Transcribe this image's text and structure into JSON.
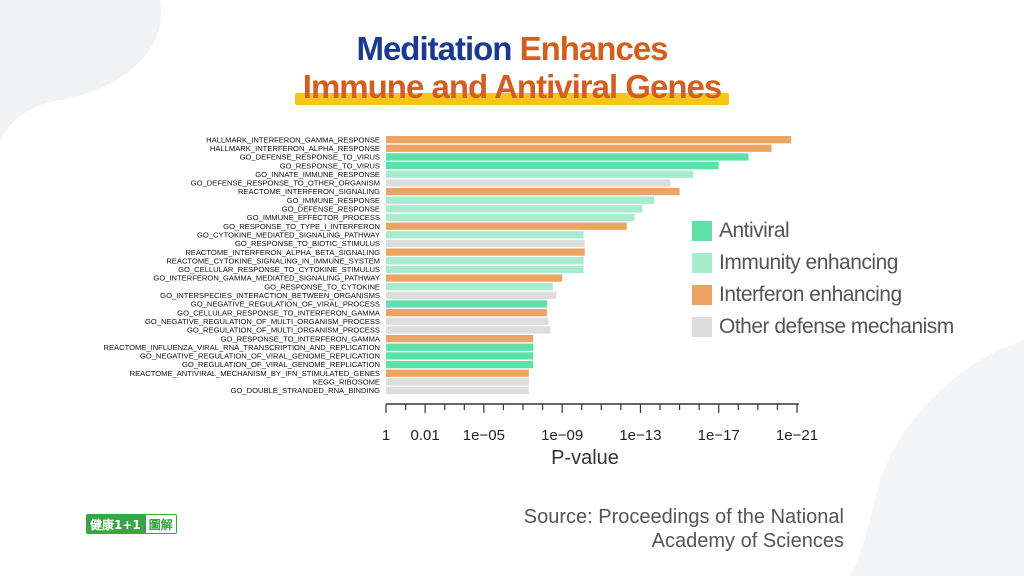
{
  "title": {
    "part1": "Meditation",
    "part2": "Enhances",
    "line2": "Immune and Antiviral Genes"
  },
  "colors": {
    "Antiviral": "#5fe0a8",
    "Immunity enhancing": "#a8ecd0",
    "Interferon enhancing": "#eba464",
    "Other defense mechanism": "#dddddd"
  },
  "chart_data": {
    "type": "bar",
    "orientation": "horizontal",
    "xlabel": "P-value",
    "x_scale": "log (reversed)",
    "xlim": [
      1,
      1e-22
    ],
    "x_ticks": [
      "1",
      "0.01",
      "1e−05",
      "1e−09",
      "1e−13",
      "1e−17",
      "1e−21"
    ],
    "legend": [
      "Antiviral",
      "Immunity enhancing",
      "Interferon enhancing",
      "Other defense mechanism"
    ],
    "legend_position": "right",
    "bars": [
      {
        "label": "HALLMARK_INTERFERON_GAMMA_RESPONSE",
        "pvalue": 2e-21,
        "category": "Interferon enhancing"
      },
      {
        "label": "HALLMARK_INTERFERON_ALPHA_RESPONSE",
        "pvalue": 2e-20,
        "category": "Interferon enhancing"
      },
      {
        "label": "GO_DEFENSE_RESPONSE_TO_VIRUS",
        "pvalue": 3e-19,
        "category": "Antiviral"
      },
      {
        "label": "GO_RESPONSE_TO_VIRUS",
        "pvalue": 1e-17,
        "category": "Antiviral"
      },
      {
        "label": "GO_INNATE_IMMUNE_RESPONSE",
        "pvalue": 2e-16,
        "category": "Immunity enhancing"
      },
      {
        "label": "GO_DEFENSE_RESPONSE_TO_OTHER_ORGANISM",
        "pvalue": 3e-15,
        "category": "Other defense mechanism"
      },
      {
        "label": "REACTOME_INTERFERON_SIGNALING",
        "pvalue": 1e-15,
        "category": "Interferon enhancing"
      },
      {
        "label": "GO_IMMUNE_RESPONSE",
        "pvalue": 2e-14,
        "category": "Immunity enhancing"
      },
      {
        "label": "GO_DEFENSE_RESPONSE",
        "pvalue": 8e-14,
        "category": "Immunity enhancing"
      },
      {
        "label": "GO_IMMUNE_EFFECTOR_PROCESS",
        "pvalue": 2e-13,
        "category": "Immunity enhancing"
      },
      {
        "label": "GO_RESPONSE_TO_TYPE_I_INTERFERON",
        "pvalue": 5e-13,
        "category": "Interferon enhancing"
      },
      {
        "label": "GO_CYTOKINE_MEDIATED_SIGNALING_PATHWAY",
        "pvalue": 8e-11,
        "category": "Immunity enhancing"
      },
      {
        "label": "GO_RESPONSE_TO_BIOTIC_STIMULUS",
        "pvalue": 7e-11,
        "category": "Other defense mechanism"
      },
      {
        "label": "REACTOME_INTERFERON_ALPHA_BETA_SIGNALING",
        "pvalue": 7e-11,
        "category": "Interferon enhancing"
      },
      {
        "label": "REACTOME_CYTOKINE_SIGNALING_IN_IMMUNE_SYSTEM",
        "pvalue": 8e-11,
        "category": "Immunity enhancing"
      },
      {
        "label": "GO_CELLULAR_RESPONSE_TO_CYTOKINE_STIMULUS",
        "pvalue": 8e-11,
        "category": "Immunity enhancing"
      },
      {
        "label": "GO_INTERFERON_GAMMA_MEDIATED_SIGNALING_PATHWAY",
        "pvalue": 1e-09,
        "category": "Interferon enhancing"
      },
      {
        "label": "GO_RESPONSE_TO_CYTOKINE",
        "pvalue": 3e-09,
        "category": "Immunity enhancing"
      },
      {
        "label": "GO_INTERSPECIES_INTERACTION_BETWEEN_ORGANISMS",
        "pvalue": 2e-09,
        "category": "Other defense mechanism"
      },
      {
        "label": "GO_NEGATIVE_REGULATION_OF_VIRAL_PROCESS",
        "pvalue": 6e-09,
        "category": "Antiviral"
      },
      {
        "label": "GO_CELLULAR_RESPONSE_TO_INTERFERON_GAMMA",
        "pvalue": 6e-09,
        "category": "Interferon enhancing"
      },
      {
        "label": "GO_NEGATIVE_REGULATION_OF_MULTI_ORGANISM_PROCESS",
        "pvalue": 5e-09,
        "category": "Other defense mechanism"
      },
      {
        "label": "GO_REGULATION_OF_MULTI_ORGANISM_PROCESS",
        "pvalue": 4e-09,
        "category": "Other defense mechanism"
      },
      {
        "label": "GO_RESPONSE_TO_INTERFERON_GAMMA",
        "pvalue": 3e-08,
        "category": "Interferon enhancing"
      },
      {
        "label": "REACTOME_INFLUENZA_VIRAL_RNA_TRANSCRIPTION_AND_REPLICATION",
        "pvalue": 3e-08,
        "category": "Antiviral"
      },
      {
        "label": "GO_NEGATIVE_REGULATION_OF_VIRAL_GENOME_REPLICATION",
        "pvalue": 3e-08,
        "category": "Antiviral"
      },
      {
        "label": "GO_REGULATION_OF_VIRAL_GENOME_REPLICATION",
        "pvalue": 3e-08,
        "category": "Antiviral"
      },
      {
        "label": "REACTOME_ANTIVIRAL_MECHANISM_BY_IFN_STIMULATED_GENES",
        "pvalue": 5e-08,
        "category": "Interferon enhancing"
      },
      {
        "label": "KEGG_RIBOSOME",
        "pvalue": 5e-08,
        "category": "Other defense mechanism"
      },
      {
        "label": "GO_DOUBLE_STRANDED_RNA_BINDING",
        "pvalue": 5e-08,
        "category": "Other defense mechanism"
      }
    ]
  },
  "source": {
    "line1": "Source: Proceedings of the National",
    "line2": "Academy of Sciences"
  },
  "logo": {
    "part1": "健康1+1",
    "part2": "圖解"
  }
}
